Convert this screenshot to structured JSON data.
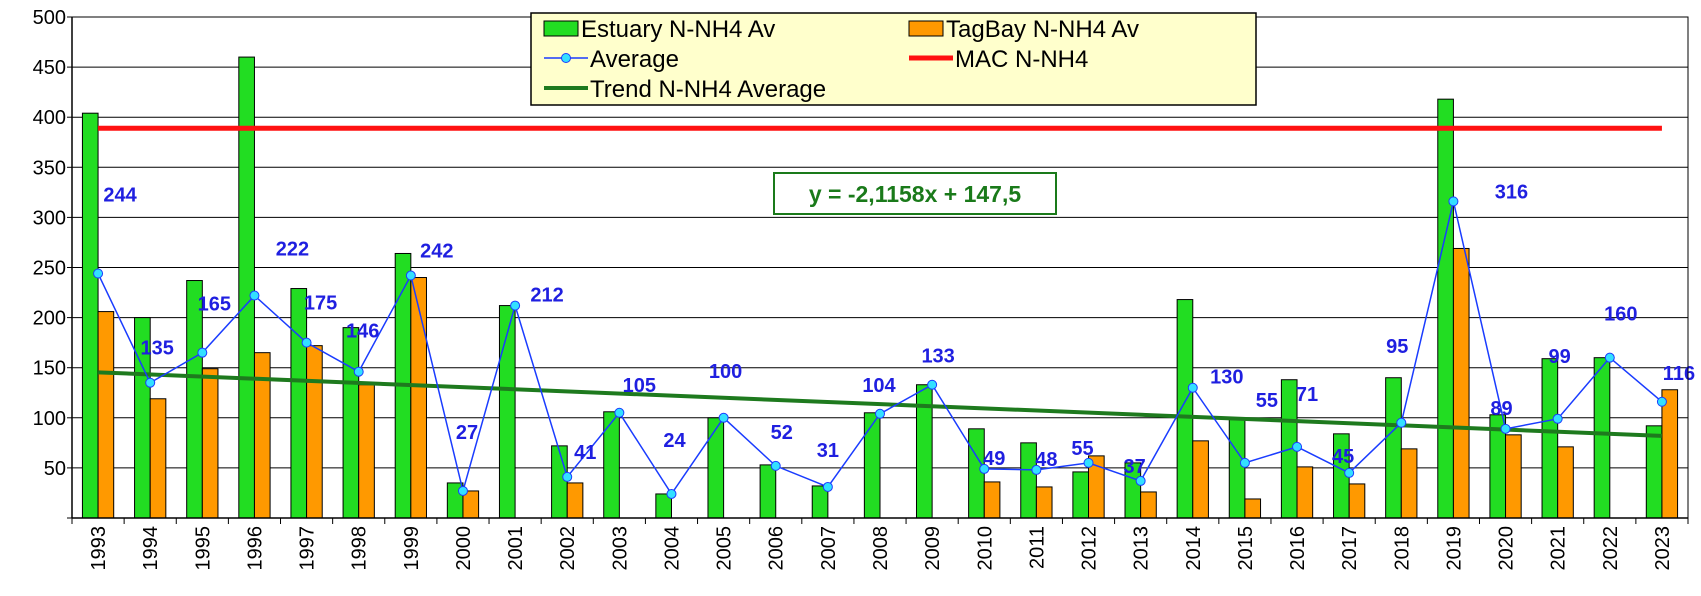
{
  "chart_data": {
    "type": "bar",
    "categories": [
      "1993",
      "1994",
      "1995",
      "1996",
      "1997",
      "1998",
      "1999",
      "2000",
      "2001",
      "2002",
      "2003",
      "2004",
      "2005",
      "2006",
      "2007",
      "2008",
      "2009",
      "2010",
      "2011",
      "2012",
      "2013",
      "2014",
      "2015",
      "2016",
      "2017",
      "2018",
      "2019",
      "2020",
      "2021",
      "2022",
      "2023"
    ],
    "ylim": [
      0,
      500
    ],
    "yticks": [
      50,
      100,
      150,
      200,
      250,
      300,
      350,
      400,
      450,
      500
    ],
    "grid": true,
    "legend_position": "top-center",
    "series": [
      {
        "name": "Estuary N-NH4 Av",
        "kind": "bar",
        "color": "#22dd22",
        "values": [
          404,
          200,
          237,
          460,
          229,
          190,
          264,
          35,
          212,
          72,
          106,
          24,
          100,
          53,
          32,
          105,
          133,
          89,
          75,
          46,
          55,
          218,
          100,
          138,
          84,
          140,
          418,
          103,
          159,
          160,
          92
        ]
      },
      {
        "name": "TagBay N-NH4 Av",
        "kind": "bar",
        "color": "#ff9900",
        "values": [
          206,
          119,
          149,
          165,
          172,
          133,
          240,
          27,
          null,
          35,
          null,
          null,
          null,
          null,
          null,
          null,
          null,
          36,
          31,
          62,
          26,
          77,
          19,
          51,
          34,
          69,
          269,
          83,
          71,
          null,
          128
        ]
      },
      {
        "name": "Average",
        "kind": "line-marker",
        "color": "#1a3cff",
        "marker_color": "#33e0ff",
        "values": [
          244,
          135,
          165,
          222,
          175,
          146,
          242,
          27,
          212,
          41,
          105,
          24,
          100,
          52,
          31,
          104,
          133,
          49,
          48,
          55,
          37,
          130,
          55,
          71,
          45,
          95,
          316,
          89,
          99,
          160,
          116
        ]
      },
      {
        "name": "MAC N-NH4",
        "kind": "constant-line",
        "color": "#ff1111",
        "value": 389
      },
      {
        "name": "Trend N-NH4 Average",
        "kind": "trend-line",
        "color": "#1e7a1e",
        "slope": -2.1158,
        "intercept": 147.5
      }
    ],
    "data_labels": [
      "244",
      "135",
      "165",
      "222",
      "175",
      "146",
      "242",
      "27",
      "212",
      "41",
      "105",
      "24",
      "100",
      "52",
      "31",
      "104",
      "133",
      "49",
      "48",
      "55",
      "37",
      "130",
      "55",
      "71",
      "45",
      "95",
      "316",
      "89",
      "99",
      "160",
      "116"
    ],
    "annotation": "y = -2,1158x + 147,5"
  }
}
